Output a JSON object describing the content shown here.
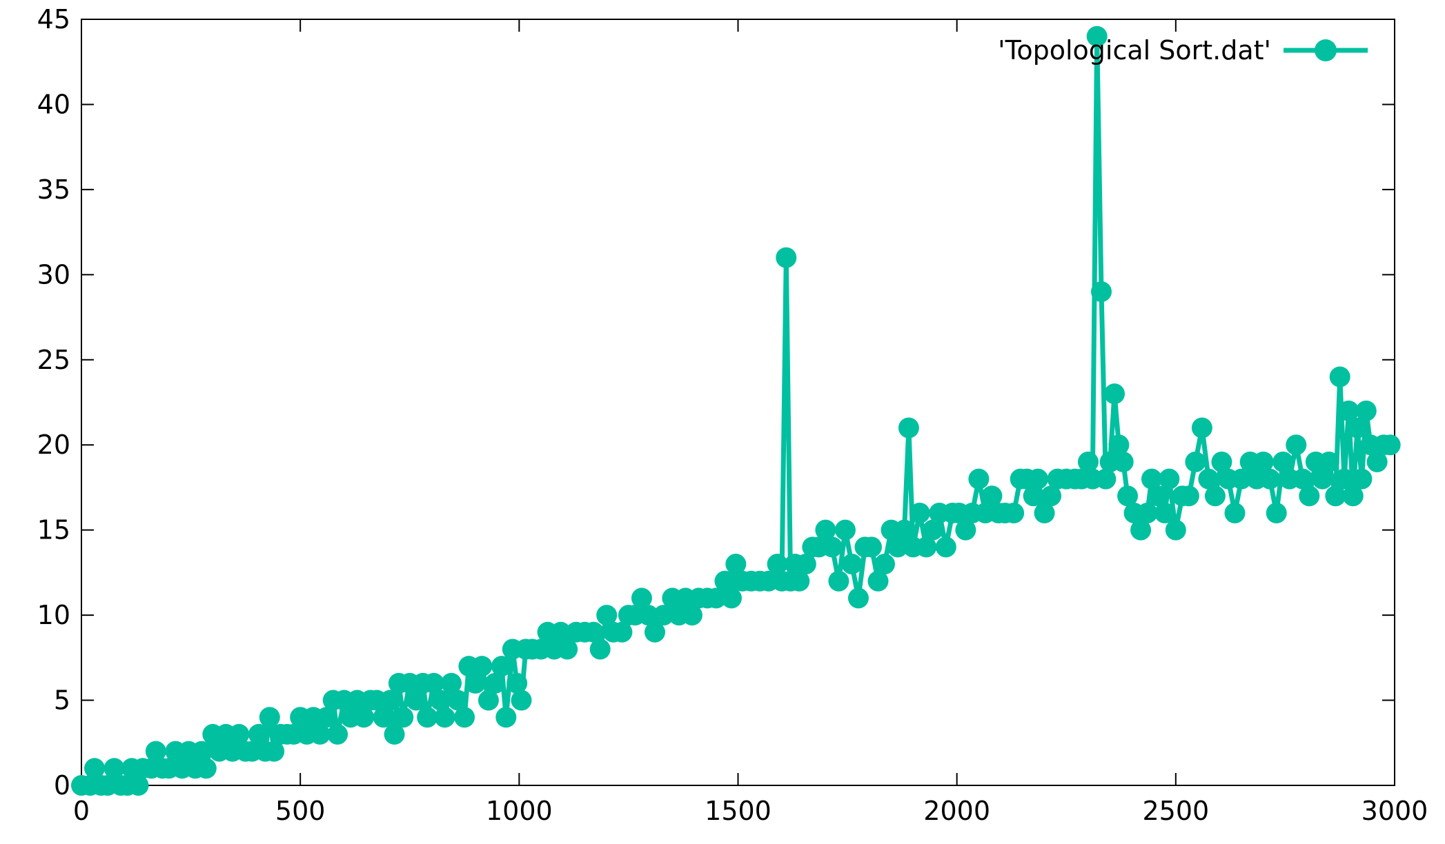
{
  "chart_data": {
    "type": "line",
    "title": "",
    "xlabel": "",
    "ylabel": "",
    "xlim": [
      0,
      3000
    ],
    "ylim": [
      0,
      45
    ],
    "x_ticks": [
      0,
      500,
      1000,
      1500,
      2000,
      2500,
      3000
    ],
    "y_ticks": [
      0,
      5,
      10,
      15,
      20,
      25,
      30,
      35,
      40,
      45
    ],
    "grid": false,
    "legend_position": "top-right",
    "marker": "filled-circle",
    "series": [
      {
        "name": "'Topological Sort.dat'",
        "color": "#00C0A0",
        "points": [
          [
            0,
            0
          ],
          [
            20,
            0
          ],
          [
            30,
            1
          ],
          [
            45,
            0
          ],
          [
            60,
            0
          ],
          [
            75,
            1
          ],
          [
            90,
            0
          ],
          [
            105,
            0
          ],
          [
            115,
            1
          ],
          [
            130,
            0
          ],
          [
            140,
            1
          ],
          [
            160,
            1
          ],
          [
            170,
            2
          ],
          [
            185,
            1
          ],
          [
            200,
            1
          ],
          [
            215,
            2
          ],
          [
            230,
            1
          ],
          [
            245,
            2
          ],
          [
            260,
            1
          ],
          [
            275,
            2
          ],
          [
            285,
            1
          ],
          [
            300,
            3
          ],
          [
            315,
            2
          ],
          [
            330,
            3
          ],
          [
            345,
            2
          ],
          [
            360,
            3
          ],
          [
            375,
            2
          ],
          [
            390,
            2
          ],
          [
            405,
            3
          ],
          [
            420,
            2
          ],
          [
            430,
            4
          ],
          [
            440,
            2
          ],
          [
            455,
            3
          ],
          [
            470,
            3
          ],
          [
            485,
            3
          ],
          [
            500,
            4
          ],
          [
            515,
            3
          ],
          [
            530,
            4
          ],
          [
            545,
            3
          ],
          [
            560,
            4
          ],
          [
            575,
            5
          ],
          [
            585,
            3
          ],
          [
            600,
            5
          ],
          [
            615,
            4
          ],
          [
            630,
            5
          ],
          [
            645,
            4
          ],
          [
            660,
            5
          ],
          [
            675,
            5
          ],
          [
            690,
            4
          ],
          [
            705,
            5
          ],
          [
            715,
            3
          ],
          [
            725,
            6
          ],
          [
            735,
            4
          ],
          [
            750,
            6
          ],
          [
            765,
            5
          ],
          [
            780,
            6
          ],
          [
            790,
            4
          ],
          [
            805,
            6
          ],
          [
            820,
            5
          ],
          [
            830,
            4
          ],
          [
            845,
            6
          ],
          [
            860,
            5
          ],
          [
            875,
            4
          ],
          [
            885,
            7
          ],
          [
            900,
            6
          ],
          [
            915,
            7
          ],
          [
            930,
            5
          ],
          [
            945,
            6
          ],
          [
            960,
            7
          ],
          [
            970,
            4
          ],
          [
            985,
            8
          ],
          [
            995,
            6
          ],
          [
            1005,
            5
          ],
          [
            1015,
            8
          ],
          [
            1030,
            8
          ],
          [
            1050,
            8
          ],
          [
            1065,
            9
          ],
          [
            1080,
            8
          ],
          [
            1095,
            9
          ],
          [
            1110,
            8
          ],
          [
            1130,
            9
          ],
          [
            1150,
            9
          ],
          [
            1170,
            9
          ],
          [
            1185,
            8
          ],
          [
            1200,
            10
          ],
          [
            1215,
            9
          ],
          [
            1235,
            9
          ],
          [
            1250,
            10
          ],
          [
            1265,
            10
          ],
          [
            1280,
            11
          ],
          [
            1295,
            10
          ],
          [
            1310,
            9
          ],
          [
            1330,
            10
          ],
          [
            1350,
            11
          ],
          [
            1365,
            10
          ],
          [
            1380,
            11
          ],
          [
            1395,
            10
          ],
          [
            1410,
            11
          ],
          [
            1430,
            11
          ],
          [
            1450,
            11
          ],
          [
            1470,
            12
          ],
          [
            1485,
            11
          ],
          [
            1495,
            13
          ],
          [
            1510,
            12
          ],
          [
            1530,
            12
          ],
          [
            1550,
            12
          ],
          [
            1570,
            12
          ],
          [
            1590,
            13
          ],
          [
            1600,
            12
          ],
          [
            1610,
            31
          ],
          [
            1620,
            12
          ],
          [
            1630,
            13
          ],
          [
            1640,
            12
          ],
          [
            1655,
            13
          ],
          [
            1670,
            14
          ],
          [
            1685,
            14
          ],
          [
            1700,
            15
          ],
          [
            1715,
            14
          ],
          [
            1730,
            12
          ],
          [
            1745,
            15
          ],
          [
            1760,
            13
          ],
          [
            1775,
            11
          ],
          [
            1790,
            14
          ],
          [
            1805,
            14
          ],
          [
            1820,
            12
          ],
          [
            1835,
            13
          ],
          [
            1850,
            15
          ],
          [
            1865,
            14
          ],
          [
            1880,
            15
          ],
          [
            1890,
            21
          ],
          [
            1900,
            14
          ],
          [
            1915,
            16
          ],
          [
            1930,
            14
          ],
          [
            1945,
            15
          ],
          [
            1960,
            16
          ],
          [
            1975,
            14
          ],
          [
            1990,
            16
          ],
          [
            2005,
            16
          ],
          [
            2020,
            15
          ],
          [
            2035,
            16
          ],
          [
            2050,
            18
          ],
          [
            2065,
            16
          ],
          [
            2080,
            17
          ],
          [
            2095,
            16
          ],
          [
            2110,
            16
          ],
          [
            2130,
            16
          ],
          [
            2145,
            18
          ],
          [
            2160,
            18
          ],
          [
            2175,
            17
          ],
          [
            2185,
            18
          ],
          [
            2200,
            16
          ],
          [
            2215,
            17
          ],
          [
            2230,
            18
          ],
          [
            2250,
            18
          ],
          [
            2270,
            18
          ],
          [
            2285,
            18
          ],
          [
            2300,
            19
          ],
          [
            2310,
            18
          ],
          [
            2320,
            44
          ],
          [
            2330,
            29
          ],
          [
            2340,
            18
          ],
          [
            2350,
            19
          ],
          [
            2360,
            23
          ],
          [
            2370,
            20
          ],
          [
            2380,
            19
          ],
          [
            2390,
            17
          ],
          [
            2405,
            16
          ],
          [
            2420,
            15
          ],
          [
            2435,
            16
          ],
          [
            2445,
            18
          ],
          [
            2460,
            17
          ],
          [
            2475,
            16
          ],
          [
            2485,
            18
          ],
          [
            2500,
            15
          ],
          [
            2515,
            17
          ],
          [
            2530,
            17
          ],
          [
            2545,
            19
          ],
          [
            2560,
            21
          ],
          [
            2575,
            18
          ],
          [
            2590,
            17
          ],
          [
            2605,
            19
          ],
          [
            2620,
            18
          ],
          [
            2635,
            16
          ],
          [
            2650,
            18
          ],
          [
            2670,
            19
          ],
          [
            2685,
            18
          ],
          [
            2700,
            19
          ],
          [
            2715,
            18
          ],
          [
            2730,
            16
          ],
          [
            2745,
            19
          ],
          [
            2760,
            18
          ],
          [
            2775,
            20
          ],
          [
            2790,
            18
          ],
          [
            2805,
            17
          ],
          [
            2820,
            19
          ],
          [
            2835,
            18
          ],
          [
            2850,
            19
          ],
          [
            2865,
            17
          ],
          [
            2875,
            24
          ],
          [
            2885,
            18
          ],
          [
            2895,
            22
          ],
          [
            2905,
            17
          ],
          [
            2915,
            21
          ],
          [
            2925,
            18
          ],
          [
            2935,
            22
          ],
          [
            2945,
            20
          ],
          [
            2960,
            19
          ],
          [
            2975,
            20
          ],
          [
            2990,
            20
          ]
        ]
      }
    ]
  }
}
